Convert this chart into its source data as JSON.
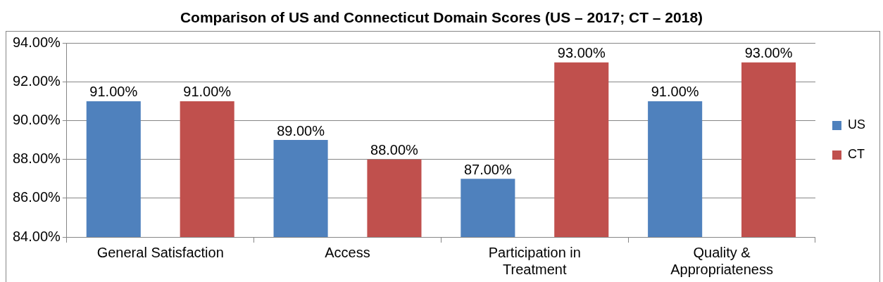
{
  "chart_data": {
    "type": "bar",
    "title": "Comparison of US and Connecticut Domain Scores (US – 2017; CT – 2018)",
    "categories": [
      "General Satisfaction",
      "Access",
      "Participation in Treatment",
      "Quality & Appropriateness"
    ],
    "series": [
      {
        "name": "US",
        "color": "#4f81bd",
        "values": [
          91,
          89,
          87,
          91
        ],
        "value_labels": [
          "91.00%",
          "89.00%",
          "87.00%",
          "91.00%"
        ]
      },
      {
        "name": "CT",
        "color": "#c0504d",
        "values": [
          91,
          88,
          93,
          93
        ],
        "value_labels": [
          "91.00%",
          "88.00%",
          "93.00%",
          "93.00%"
        ]
      }
    ],
    "ylim": [
      84,
      94
    ],
    "yticks": [
      {
        "value": 84,
        "label": "84.00%"
      },
      {
        "value": 86,
        "label": "86.00%"
      },
      {
        "value": 88,
        "label": "88.00%"
      },
      {
        "value": 90,
        "label": "90.00%"
      },
      {
        "value": 92,
        "label": "92.00%"
      },
      {
        "value": 94,
        "label": "94.00%"
      }
    ],
    "grid": "y",
    "legend": "right"
  }
}
